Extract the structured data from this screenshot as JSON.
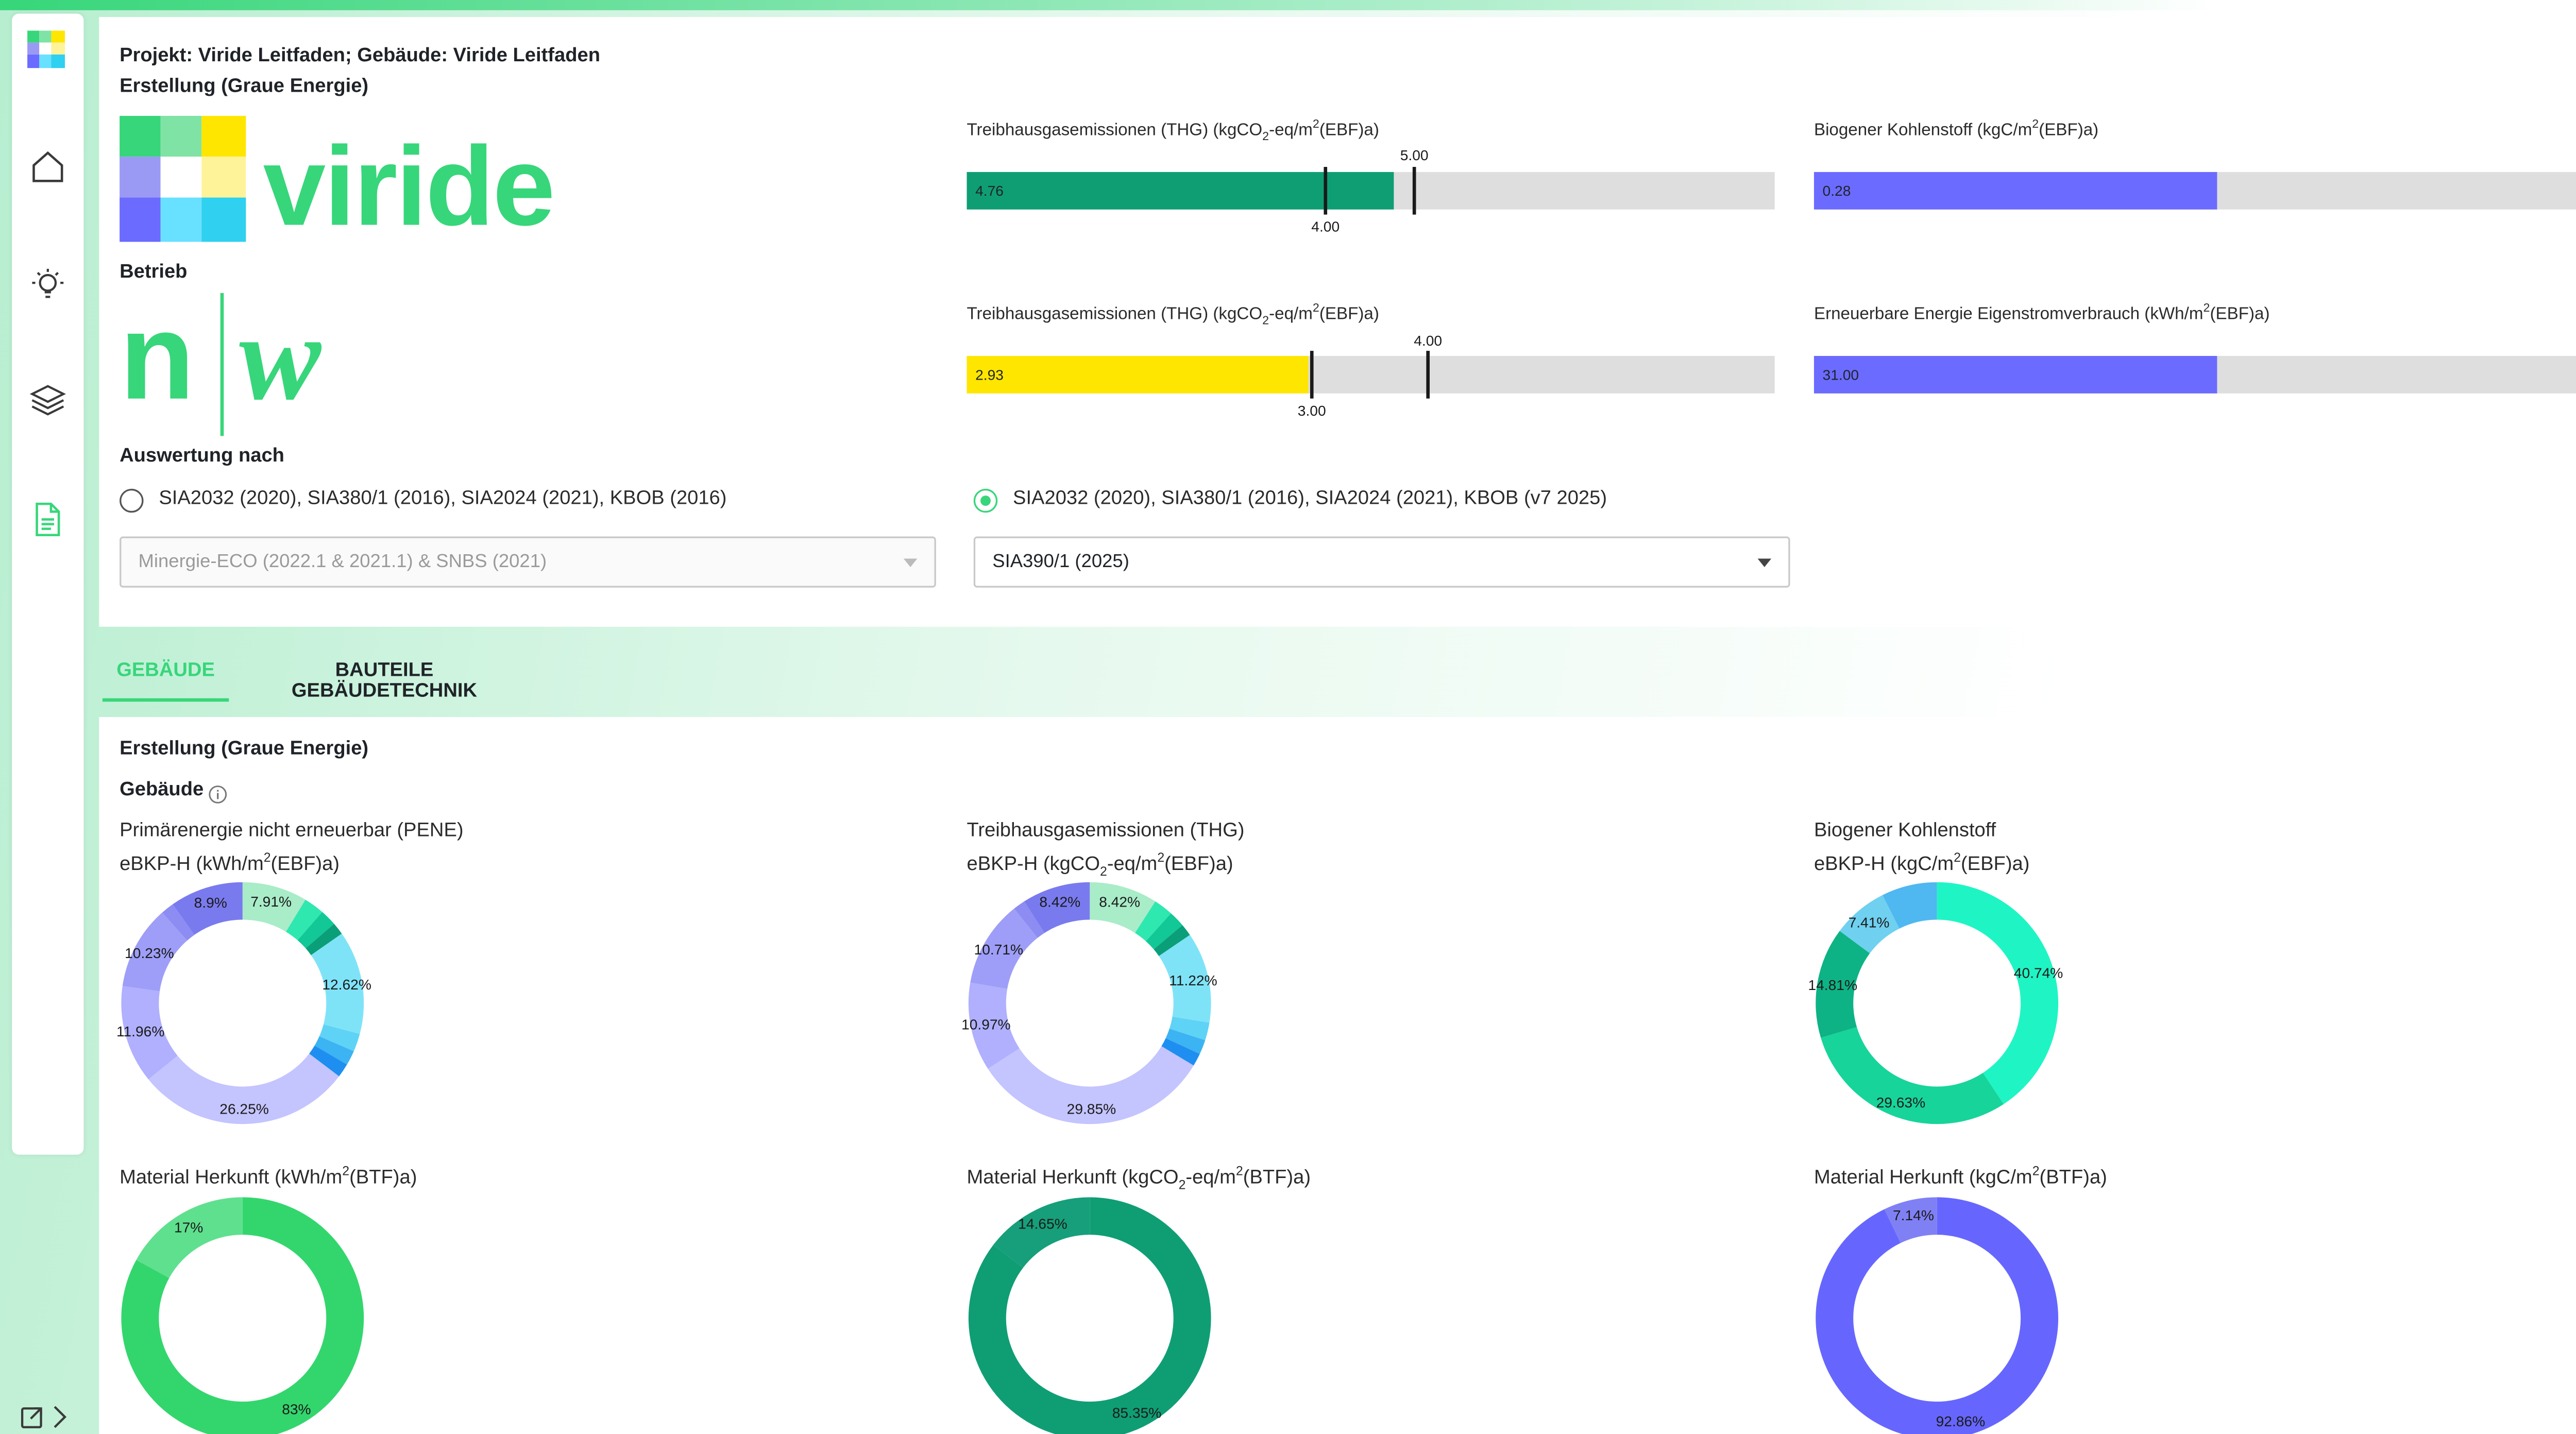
{
  "header": {
    "project_line": "Projekt: Viride Leitfaden; Gebäude: Viride Leitfaden",
    "creation_title": "Erstellung (Graue Energie)",
    "operation_title": "Betrieb",
    "logo_text": "viride",
    "nw_logo": "n|w"
  },
  "sidebar": {
    "items": [
      {
        "name": "home-icon"
      },
      {
        "name": "lightbulb-icon"
      },
      {
        "name": "layers-icon"
      },
      {
        "name": "document-icon"
      }
    ],
    "collapse_icon": "expand-sidebar-icon"
  },
  "toolbar_icons": [
    "dashboard-grid-icon",
    "save-icon"
  ],
  "kpis": {
    "ghg_creation": {
      "label": "Treibhausgasemissionen (THG) (kgCO",
      "unit_tail": "-eq/m",
      "unit_end": "(EBF)a)",
      "value": "4.76",
      "value_num": 4.76,
      "target": "5.00",
      "target_num": 5.0,
      "limit": "4.00",
      "limit_num": 4.0,
      "max": 10,
      "color": "#0f9e74"
    },
    "biogenic_carbon": {
      "label": "Biogener Kohlenstoff (kgC/m",
      "unit_end": "(EBF)a)",
      "value": "0.28",
      "fill_fraction": 0.5,
      "color": "#6b6bff"
    },
    "ghg_operation": {
      "label": "Treibhausgasemissionen (THG) (kgCO",
      "unit_tail": "-eq/m",
      "unit_end": "(EBF)a)",
      "value": "2.93",
      "value_num": 2.93,
      "target": "4.00",
      "target_num": 4.0,
      "limit": "3.00",
      "limit_num": 3.0,
      "max": 7.6,
      "color": "#ffe600"
    },
    "renewable_self": {
      "label": "Erneuerbare Energie Eigenstromverbrauch (kWh/m",
      "unit_end": "(EBF)a)",
      "value": "31.00",
      "fill_fraction": 0.5,
      "color": "#6b6bff"
    }
  },
  "evaluation": {
    "title": "Auswertung nach",
    "option1": "SIA2032 (2020), SIA380/1 (2016), SIA2024 (2021), KBOB (2016)",
    "option2": "SIA2032 (2020), SIA380/1 (2016), SIA2024 (2021), KBOB (v7 2025)",
    "option1_selected": false,
    "option2_selected": true,
    "select1": "Minergie-ECO (2022.1 & 2021.1) & SNBS (2021)",
    "select2": "SIA390/1 (2025)"
  },
  "tabs": [
    {
      "label": "GEBÄUDE",
      "active": true
    },
    {
      "label": "BAUTEILE GEBÄUDETECHNIK",
      "active": false
    }
  ],
  "main": {
    "section_title": "Erstellung (Graue Energie)",
    "subsection": "Gebäude",
    "info_icon": "info-icon",
    "chart1_line1": "Primärenergie nicht erneuerbar (PENE)",
    "chart1_line2": "eBKP-H (kWh/m",
    "chart2_line1": "Treibhausgasemissionen (THG)",
    "chart2_line2a": "eBKP-H (kgCO",
    "chart2_line2b": "-eq/m",
    "chart3_line1": "Biogener Kohlenstoff",
    "chart3_line2": "eBKP-H (kgC/m",
    "ebf_tail": "(EBF)a)",
    "btf_tail": "(BTF)a)",
    "chart4_title": "Material Herkunft (kWh/m",
    "chart5_title_a": "Material Herkunft (kgCO",
    "chart5_title_b": "-eq/m",
    "chart6_title": "Material Herkunft (kgC/m",
    "sup2": "2",
    "sub2": "2"
  },
  "chart_data": [
    {
      "type": "pie",
      "title": "Primärenergie nicht erneuerbar (PENE)",
      "categories": [
        "7.91%",
        "12.62%",
        "26.25%",
        "11.96%",
        "10.23%",
        "8.9%"
      ],
      "values": [
        7.91,
        2.5,
        2.0,
        1.5,
        12.62,
        2.2,
        1.8,
        1.7,
        26.25,
        11.96,
        10.23,
        1.6,
        8.9
      ],
      "colors": [
        "#a8ecc8",
        "#2ee8b0",
        "#12c896",
        "#0a9f78",
        "#7fe3f8",
        "#5fd3f5",
        "#3cb3f2",
        "#1e8ff0",
        "#c4c4ff",
        "#b0b0ff",
        "#9e9ef8",
        "#8c8cf2",
        "#7a7aef"
      ],
      "labels": [
        "7.91%",
        "",
        "",
        "",
        "12.62%",
        "",
        "",
        "",
        "26.25%",
        "11.96%",
        "10.23%",
        "",
        "8.9%"
      ]
    },
    {
      "type": "pie",
      "title": "Treibhausgasemissionen (THG)",
      "categories": [
        "8.42%",
        "11.22%",
        "29.85%",
        "10.97%",
        "10.71%",
        "8.42%"
      ],
      "values": [
        8.42,
        2.4,
        2.0,
        1.5,
        11.22,
        2.2,
        1.8,
        1.6,
        29.85,
        10.97,
        10.71,
        1.5,
        8.42
      ],
      "colors": [
        "#a8ecc8",
        "#2ee8b0",
        "#12c896",
        "#0a9f78",
        "#7fe3f8",
        "#5fd3f5",
        "#3cb3f2",
        "#1e8ff0",
        "#c4c4ff",
        "#b0b0ff",
        "#9e9ef8",
        "#8c8cf2",
        "#7a7aef"
      ],
      "labels": [
        "8.42%",
        "",
        "",
        "",
        "11.22%",
        "",
        "",
        "",
        "29.85%",
        "10.97%",
        "10.71%",
        "",
        "8.42%"
      ]
    },
    {
      "type": "pie",
      "title": "Biogener Kohlenstoff",
      "categories": [
        "40.74%",
        "29.63%",
        "14.81%",
        "7.41%"
      ],
      "values": [
        40.74,
        29.63,
        14.81,
        7.41,
        7.41
      ],
      "colors": [
        "#1ff5c4",
        "#17d49a",
        "#0db384",
        "#6fd0f0",
        "#4fb8f0"
      ],
      "labels": [
        "40.74%",
        "29.63%",
        "14.81%",
        "7.41%",
        ""
      ]
    },
    {
      "type": "pie",
      "title": "Material Herkunft (kWh/m2(BTF)a)",
      "categories": [
        "83%",
        "17%"
      ],
      "values": [
        83,
        17
      ],
      "colors": [
        "#33d66d",
        "#5fe08e"
      ],
      "labels": [
        "83%",
        "17%"
      ]
    },
    {
      "type": "pie",
      "title": "Material Herkunft (kgCO2-eq/m2(BTF)a)",
      "categories": [
        "85.35%",
        "14.65%"
      ],
      "values": [
        85.35,
        14.65
      ],
      "colors": [
        "#0f9e74",
        "#169f7a"
      ],
      "labels": [
        "85.35%",
        "14.65%"
      ]
    },
    {
      "type": "pie",
      "title": "Material Herkunft (kgC/m2(BTF)a)",
      "categories": [
        "92.86%",
        "7.14%"
      ],
      "values": [
        92.86,
        7.14
      ],
      "colors": [
        "#6666ff",
        "#8080f5"
      ],
      "labels": [
        "92.86%",
        "7.14%"
      ]
    }
  ]
}
